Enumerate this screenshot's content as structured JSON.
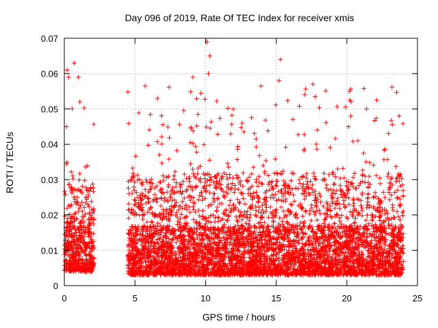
{
  "chart_data": {
    "type": "scatter",
    "title": "Day 096 of 2019, Rate Of TEC Index for receiver xmis",
    "xlabel": "GPS time / hours",
    "ylabel": "ROTI / TECUs",
    "xlim": [
      0,
      25
    ],
    "ylim": [
      0,
      0.07
    ],
    "xticks": [
      0,
      5,
      10,
      15,
      20,
      25
    ],
    "xtick_labels": [
      "0",
      "5",
      "10",
      "15",
      "20",
      "25"
    ],
    "yticks": [
      0,
      0.01,
      0.02,
      0.03,
      0.04,
      0.05,
      0.06,
      0.07
    ],
    "ytick_labels": [
      "0",
      "0.01",
      "0.02",
      "0.03",
      "0.04",
      "0.05",
      "0.06",
      "0.07"
    ],
    "grid": true,
    "marker": "+",
    "color": "#ff0000",
    "series": [
      {
        "name": "ROTI",
        "segments": [
          {
            "x_start": 0.0,
            "x_end": 2.1,
            "base_low": 0.004,
            "base_high": 0.03,
            "peak": 0.063
          },
          {
            "x_start": 4.5,
            "x_end": 24.0,
            "base_low": 0.003,
            "base_high": 0.032,
            "peak": 0.069
          }
        ],
        "notable_points": [
          {
            "x": 0.2,
            "y": 0.061
          },
          {
            "x": 0.3,
            "y": 0.059
          },
          {
            "x": 0.7,
            "y": 0.063
          },
          {
            "x": 1.0,
            "y": 0.059
          },
          {
            "x": 1.1,
            "y": 0.052
          },
          {
            "x": 6.6,
            "y": 0.053
          },
          {
            "x": 9.1,
            "y": 0.059
          },
          {
            "x": 10.1,
            "y": 0.069
          },
          {
            "x": 10.3,
            "y": 0.065
          },
          {
            "x": 10.2,
            "y": 0.06
          },
          {
            "x": 15.3,
            "y": 0.064
          },
          {
            "x": 15.2,
            "y": 0.058
          },
          {
            "x": 17.6,
            "y": 0.057
          },
          {
            "x": 20.2,
            "y": 0.055
          },
          {
            "x": 20.3,
            "y": 0.052
          },
          {
            "x": 21.4,
            "y": 0.05
          },
          {
            "x": 23.7,
            "y": 0.048
          }
        ]
      }
    ]
  }
}
